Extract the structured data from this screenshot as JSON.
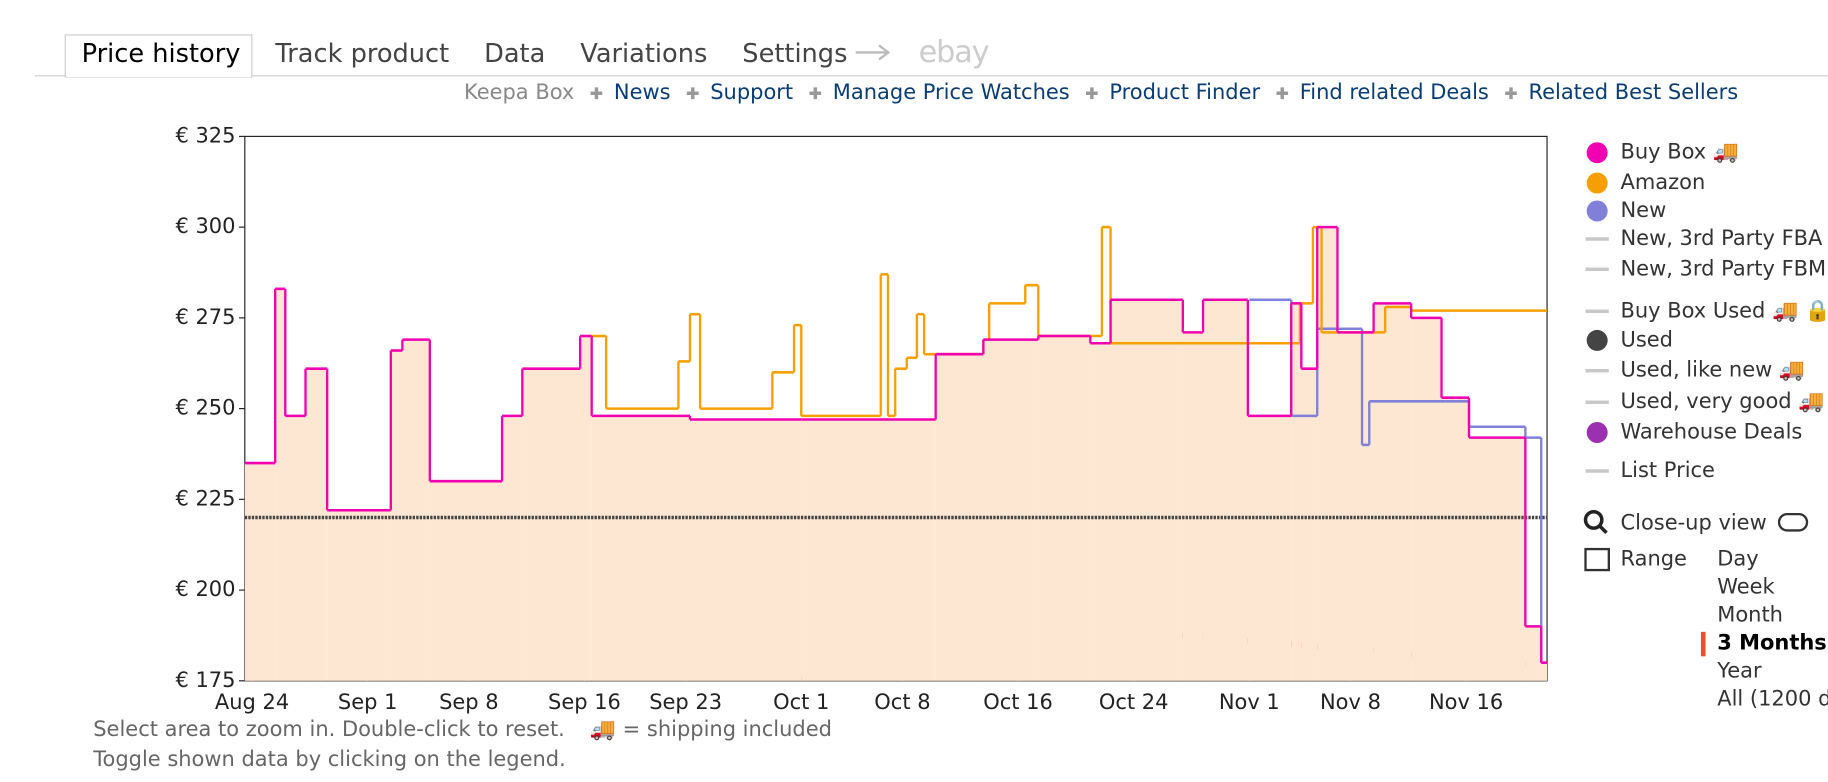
{
  "tabs": [
    "Price history",
    "Track product",
    "Data",
    "Variations",
    "Settings"
  ],
  "ebay": "ebay",
  "links": {
    "lead": "Keepa Box",
    "items": [
      "News",
      "Support",
      "Manage Price Watches",
      "Product Finder",
      "Find related Deals",
      "Related Best Sellers"
    ]
  },
  "chart_data": {
    "type": "line",
    "step": true,
    "xlim": [
      -0.5,
      89.6
    ],
    "xticks": [
      {
        "value": 0,
        "label": "Aug 24"
      },
      {
        "value": 8,
        "label": "Sep 1"
      },
      {
        "value": 15,
        "label": "Sep 8"
      },
      {
        "value": 23,
        "label": "Sep 16"
      },
      {
        "value": 30,
        "label": "Sep 23"
      },
      {
        "value": 38,
        "label": "Oct 1"
      },
      {
        "value": 45,
        "label": "Oct 8"
      },
      {
        "value": 53,
        "label": "Oct 16"
      },
      {
        "value": 61,
        "label": "Oct 24"
      },
      {
        "value": 69,
        "label": "Nov 1"
      },
      {
        "value": 76,
        "label": "Nov 8"
      },
      {
        "value": 84,
        "label": "Nov 16"
      }
    ],
    "ylim": [
      175,
      325
    ],
    "yticks": [
      {
        "value": 175,
        "label": "€ 175"
      },
      {
        "value": 200,
        "label": "€ 200"
      },
      {
        "value": 225,
        "label": "€ 225"
      },
      {
        "value": 250,
        "label": "€ 250"
      },
      {
        "value": 275,
        "label": "€ 275"
      },
      {
        "value": 300,
        "label": "€ 300"
      },
      {
        "value": 325,
        "label": "€ 325"
      }
    ],
    "area_color": "#fde6d2",
    "series": [
      {
        "name": "Buy Box 🚚",
        "color": "#f000b0",
        "marker": "dot",
        "x": [
          -0.5,
          1.6,
          2.3,
          3.7,
          5.2,
          9.6,
          10.4,
          12.3,
          17.3,
          18.7,
          22.7,
          23.5,
          30.3,
          38,
          47.3,
          50.6,
          54.4,
          58,
          59.4,
          64.4,
          65.8,
          68.9,
          71.9,
          72.6,
          73.7,
          75.1,
          77.6,
          80.2,
          82.3,
          84.2,
          88.1,
          89.2
        ],
        "values": [
          235,
          283,
          248,
          261,
          222,
          266,
          269,
          230,
          248,
          261,
          270,
          248,
          247,
          247,
          265,
          269,
          270,
          268,
          280,
          271,
          280,
          248,
          279,
          261,
          300,
          271,
          279,
          275,
          253,
          242,
          190,
          180
        ]
      },
      {
        "name": "Amazon",
        "color": "#f5a000",
        "marker": "dot",
        "x": [
          23.5,
          24.5,
          29.5,
          30.3,
          31,
          36,
          37.5,
          38,
          43.5,
          44,
          44.5,
          45.3,
          46,
          46.5,
          50.6,
          51,
          53.5,
          54.4,
          58.8,
          59.4,
          72.5,
          73.4,
          74,
          78.4,
          80.2
        ],
        "values": [
          270,
          250,
          263,
          276,
          250,
          260,
          273,
          248,
          287,
          248,
          261,
          264,
          276,
          265,
          269,
          279,
          284,
          270,
          300,
          268,
          279,
          300,
          271,
          278,
          277
        ]
      },
      {
        "name": "New",
        "color": "#8080d8",
        "marker": "dot",
        "x": [
          69,
          71.9,
          73.7,
          76.8,
          77.3,
          82.6,
          84.2,
          88.1,
          89.2
        ],
        "values": [
          280,
          248,
          272,
          240,
          252,
          252,
          245,
          242,
          180
        ]
      },
      {
        "name": "New, 3rd Party FBA",
        "color": "#c8c8c8",
        "marker": "line"
      },
      {
        "name": "New, 3rd Party FBM",
        "color": "#c8c8c8",
        "marker": "line"
      },
      {
        "name": "Buy Box Used 🚚 🔒",
        "color": "#c8c8c8",
        "marker": "line"
      },
      {
        "name": "Used",
        "color": "#444444",
        "marker": "dot",
        "dotted": true,
        "x": [
          -0.5,
          89.6
        ],
        "values": [
          220,
          220
        ]
      },
      {
        "name": "Used, like new 🚚",
        "color": "#c8c8c8",
        "marker": "line"
      },
      {
        "name": "Used, very good 🚚",
        "color": "#c8c8c8",
        "marker": "line"
      },
      {
        "name": "Warehouse Deals",
        "color": "#9b30b0",
        "marker": "dot"
      },
      {
        "name": "List Price",
        "color": "#c8c8c8",
        "marker": "line"
      }
    ]
  },
  "controls": {
    "closeup": "Close-up view",
    "range": "Range",
    "options": [
      "Day",
      "Week",
      "Month",
      "3 Months",
      "Year",
      "All (1200 d"
    ],
    "selected": 3
  },
  "footer": [
    "Select area to zoom in. Double-click to reset.",
    "🚚 = shipping included",
    "Toggle shown data by clicking on the legend."
  ]
}
